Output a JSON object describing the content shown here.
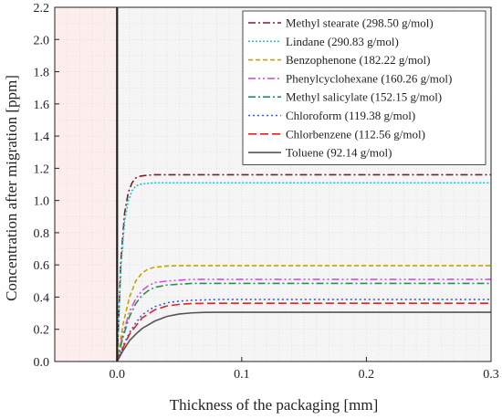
{
  "chart_data": {
    "type": "line",
    "xlabel": "Thickness of the packaging [mm]",
    "ylabel": "Concentration after migration [ppm]",
    "xlim": [
      -0.05,
      0.3
    ],
    "ylim": [
      0,
      2.2
    ],
    "x_ticks": [
      {
        "value": 0.0,
        "label": "0.0"
      },
      {
        "value": 0.1,
        "label": "0.1"
      },
      {
        "value": 0.2,
        "label": "0.2"
      },
      {
        "value": 0.3,
        "label": "0.3"
      }
    ],
    "y_ticks": [
      {
        "value": 0.0,
        "label": "0.0"
      },
      {
        "value": 0.2,
        "label": "0.2"
      },
      {
        "value": 0.4,
        "label": "0.4"
      },
      {
        "value": 0.6,
        "label": "0.6"
      },
      {
        "value": 0.8,
        "label": "0.8"
      },
      {
        "value": 1.0,
        "label": "1.0"
      },
      {
        "value": 1.2,
        "label": "1.2"
      },
      {
        "value": 1.4,
        "label": "1.4"
      },
      {
        "value": 1.6,
        "label": "1.6"
      },
      {
        "value": 1.8,
        "label": "1.8"
      },
      {
        "value": 2.0,
        "label": "2.0"
      },
      {
        "value": 2.2,
        "label": "2.2"
      }
    ],
    "grid": true,
    "legend_position": "top-right",
    "shaded_region": {
      "x_from": -0.05,
      "x_to": 0.0,
      "color": "#fdeeee"
    },
    "plot_background": "#f5f5f5",
    "series": [
      {
        "name": "Methyl stearate (298.50 g/mol)",
        "color": "#7b1e2b",
        "dash": "8,3,2,3",
        "x": [
          0.0,
          0.003,
          0.006,
          0.009,
          0.012,
          0.015,
          0.018,
          0.022,
          0.03,
          0.05,
          0.1,
          0.2,
          0.3
        ],
        "y": [
          0.0,
          0.62,
          0.92,
          1.05,
          1.11,
          1.14,
          1.15,
          1.155,
          1.16,
          1.16,
          1.16,
          1.16,
          1.16
        ]
      },
      {
        "name": "Lindane (290.83 g/mol)",
        "color": "#18c9c9",
        "dash": "2,2",
        "x": [
          0.0,
          0.003,
          0.006,
          0.009,
          0.012,
          0.015,
          0.018,
          0.022,
          0.03,
          0.05,
          0.1,
          0.2,
          0.3
        ],
        "y": [
          0.0,
          0.58,
          0.87,
          1.0,
          1.06,
          1.09,
          1.1,
          1.105,
          1.11,
          1.11,
          1.11,
          1.11,
          1.11
        ]
      },
      {
        "name": "Benzophenone (182.22 g/mol)",
        "color": "#c8a200",
        "dash": "5,3",
        "x": [
          0.0,
          0.005,
          0.01,
          0.015,
          0.02,
          0.025,
          0.03,
          0.04,
          0.05,
          0.1,
          0.2,
          0.3
        ],
        "y": [
          0.0,
          0.24,
          0.4,
          0.5,
          0.55,
          0.575,
          0.585,
          0.593,
          0.595,
          0.595,
          0.595,
          0.595
        ]
      },
      {
        "name": "Phenylcyclohexane (160.26 g/mol)",
        "color": "#cc55dd",
        "dash": "8,3,2,3,2,3",
        "x": [
          0.0,
          0.005,
          0.01,
          0.015,
          0.02,
          0.025,
          0.03,
          0.04,
          0.05,
          0.06,
          0.1,
          0.2,
          0.3
        ],
        "y": [
          0.0,
          0.18,
          0.31,
          0.39,
          0.44,
          0.47,
          0.49,
          0.5,
          0.505,
          0.51,
          0.51,
          0.51,
          0.51
        ]
      },
      {
        "name": "Methyl salicylate (152.15 g/mol)",
        "color": "#2e8b57",
        "dash": "8,3,2,3",
        "x": [
          0.0,
          0.005,
          0.01,
          0.015,
          0.02,
          0.025,
          0.03,
          0.04,
          0.05,
          0.06,
          0.1,
          0.2,
          0.3
        ],
        "y": [
          0.0,
          0.16,
          0.28,
          0.36,
          0.41,
          0.44,
          0.46,
          0.475,
          0.48,
          0.485,
          0.485,
          0.485,
          0.485
        ]
      },
      {
        "name": "Chloroform (119.38 g/mol)",
        "color": "#3b5bdb",
        "dash": "2,3",
        "x": [
          0.0,
          0.005,
          0.01,
          0.015,
          0.02,
          0.03,
          0.04,
          0.05,
          0.06,
          0.08,
          0.1,
          0.2,
          0.3
        ],
        "y": [
          0.0,
          0.1,
          0.18,
          0.24,
          0.29,
          0.34,
          0.365,
          0.375,
          0.38,
          0.385,
          0.385,
          0.385,
          0.385
        ]
      },
      {
        "name": "Chlorbenzene (112.56 g/mol)",
        "color": "#d62828",
        "dash": "9,4",
        "x": [
          0.0,
          0.005,
          0.01,
          0.015,
          0.02,
          0.03,
          0.04,
          0.05,
          0.06,
          0.08,
          0.1,
          0.2,
          0.3
        ],
        "y": [
          0.0,
          0.09,
          0.17,
          0.22,
          0.27,
          0.32,
          0.345,
          0.355,
          0.36,
          0.362,
          0.362,
          0.362,
          0.362
        ]
      },
      {
        "name": "Toluene (92.14 g/mol)",
        "color": "#555555",
        "dash": "",
        "x": [
          0.0,
          0.005,
          0.01,
          0.015,
          0.02,
          0.03,
          0.04,
          0.05,
          0.06,
          0.07,
          0.08,
          0.1,
          0.2,
          0.3
        ],
        "y": [
          0.0,
          0.07,
          0.13,
          0.17,
          0.205,
          0.25,
          0.28,
          0.295,
          0.302,
          0.305,
          0.306,
          0.306,
          0.306,
          0.306
        ]
      }
    ]
  }
}
